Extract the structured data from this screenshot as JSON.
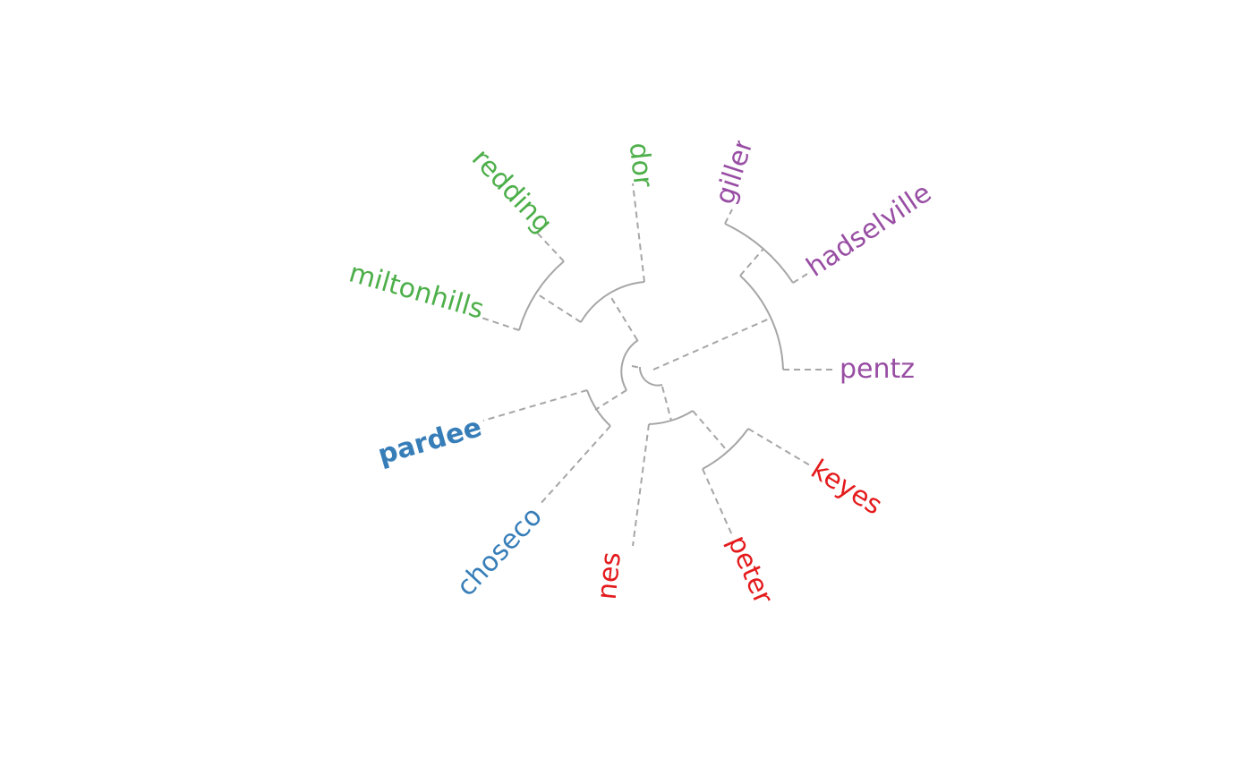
{
  "colors": {
    "green": "#4daf4a",
    "purple": "#984ea3",
    "blue": "#377eb8",
    "red": "#e41a1c",
    "branch": "#a6a6a6"
  },
  "labels": {
    "redding": "redding",
    "dor": "dor",
    "miltonhills": "miltonhills",
    "giller": "giller",
    "hadselville": "hadselville",
    "pentz": "pentz",
    "keyes": "keyes",
    "peter": "peter",
    "nes": "nes",
    "choseco": "choseco",
    "pardee": "pardee"
  }
}
